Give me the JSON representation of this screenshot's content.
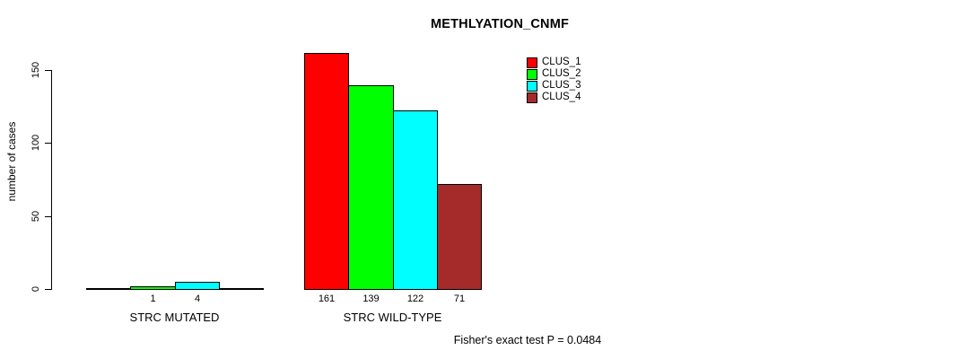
{
  "title": "METHLYATION_CNMF",
  "footer": "Fisher's exact test P = 0.0484",
  "y_axis": {
    "label": "number of cases",
    "ticks": [
      0,
      50,
      100,
      150
    ]
  },
  "legend": {
    "items": [
      {
        "label": "CLUS_1",
        "color": "#ff0000"
      },
      {
        "label": "CLUS_2",
        "color": "#00ff00"
      },
      {
        "label": "CLUS_3",
        "color": "#00ffff"
      },
      {
        "label": "CLUS_4",
        "color": "#a52a2a"
      }
    ]
  },
  "chart_data": {
    "type": "bar",
    "title": "METHLYATION_CNMF",
    "xlabel": "",
    "ylabel": "number of cases",
    "ylim": [
      0,
      150
    ],
    "yticks": [
      0,
      50,
      100,
      150
    ],
    "grid": false,
    "legend_position": "top-right",
    "categories": [
      "STRC MUTATED",
      "STRC WILD-TYPE"
    ],
    "series": [
      {
        "name": "CLUS_1",
        "color": "#ff0000",
        "values": [
          0,
          161
        ]
      },
      {
        "name": "CLUS_2",
        "color": "#00ff00",
        "values": [
          1,
          139
        ]
      },
      {
        "name": "CLUS_3",
        "color": "#00ffff",
        "values": [
          4,
          122
        ]
      },
      {
        "name": "CLUS_4",
        "color": "#a52a2a",
        "values": [
          0,
          71
        ]
      }
    ],
    "bar_value_labels": [
      [
        "",
        "1",
        "4",
        ""
      ],
      [
        "161",
        "139",
        "122",
        "71"
      ]
    ],
    "annotation": "Fisher's exact test P = 0.0484"
  }
}
